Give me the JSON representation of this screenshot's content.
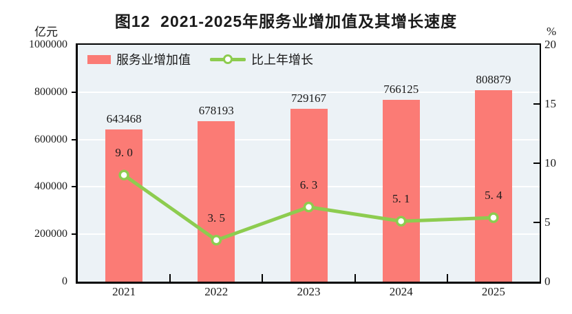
{
  "title": "图12  2021-2025年服务业增加值及其增长速度",
  "left_axis_unit": "亿元",
  "right_axis_unit": "%",
  "legend": {
    "bar": "服务业增加值",
    "line": "比上年增长"
  },
  "colors": {
    "bar": "#FB7B75",
    "line": "#8DCC4F",
    "marker_fill": "#FFFFFF",
    "plot_bg": "#ECF2F6",
    "grid": "#FFFFFF",
    "axis": "#000000",
    "text": "#1A1A1A"
  },
  "chart_data": {
    "type": "combo-bar-line",
    "title": "图12  2021-2025年服务业增加值及其增长速度",
    "categories": [
      "2021",
      "2022",
      "2023",
      "2024",
      "2025"
    ],
    "series": [
      {
        "name": "服务业增加值",
        "type": "bar",
        "axis": "left",
        "unit": "亿元",
        "values": [
          643468,
          678193,
          729167,
          766125,
          808879
        ],
        "value_labels": [
          "643468",
          "678193",
          "729167",
          "766125",
          "808879"
        ]
      },
      {
        "name": "比上年增长",
        "type": "line",
        "axis": "right",
        "unit": "%",
        "values": [
          9.0,
          3.5,
          6.3,
          5.1,
          5.4
        ],
        "value_labels": [
          "9. 0",
          "3. 5",
          "6. 3",
          "5. 1",
          "5. 4"
        ]
      }
    ],
    "left_axis": {
      "label": "亿元",
      "min": 0,
      "max": 1000000,
      "step": 200000,
      "ticks": [
        0,
        200000,
        400000,
        600000,
        800000,
        1000000
      ]
    },
    "right_axis": {
      "label": "%",
      "min": 0,
      "max": 20,
      "step": 5,
      "ticks": [
        0,
        5,
        10,
        15,
        20
      ]
    },
    "grid": true,
    "legend_position": "top-left-inside"
  }
}
